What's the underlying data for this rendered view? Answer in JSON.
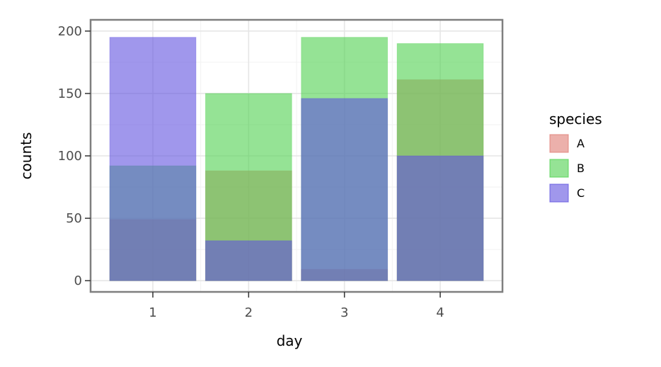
{
  "chart_data": {
    "type": "bar",
    "title": "",
    "xlabel": "day",
    "ylabel": "counts",
    "categories": [
      "1",
      "2",
      "3",
      "4"
    ],
    "ylim": [
      -9,
      209
    ],
    "yticks": [
      0,
      50,
      100,
      150,
      200
    ],
    "grid": true,
    "theme": "light",
    "bar_layout": "overlapping",
    "bar_alpha": 0.6,
    "legend": {
      "title": "species",
      "position": "right"
    },
    "series": [
      {
        "name": "A",
        "color": "#e07c73",
        "values": [
          49,
          88,
          9,
          161
        ]
      },
      {
        "name": "B",
        "color": "#4fd14f",
        "values": [
          92,
          150,
          195,
          190
        ]
      },
      {
        "name": "C",
        "color": "#6052e0",
        "values": [
          195,
          32,
          146,
          100
        ]
      }
    ]
  }
}
